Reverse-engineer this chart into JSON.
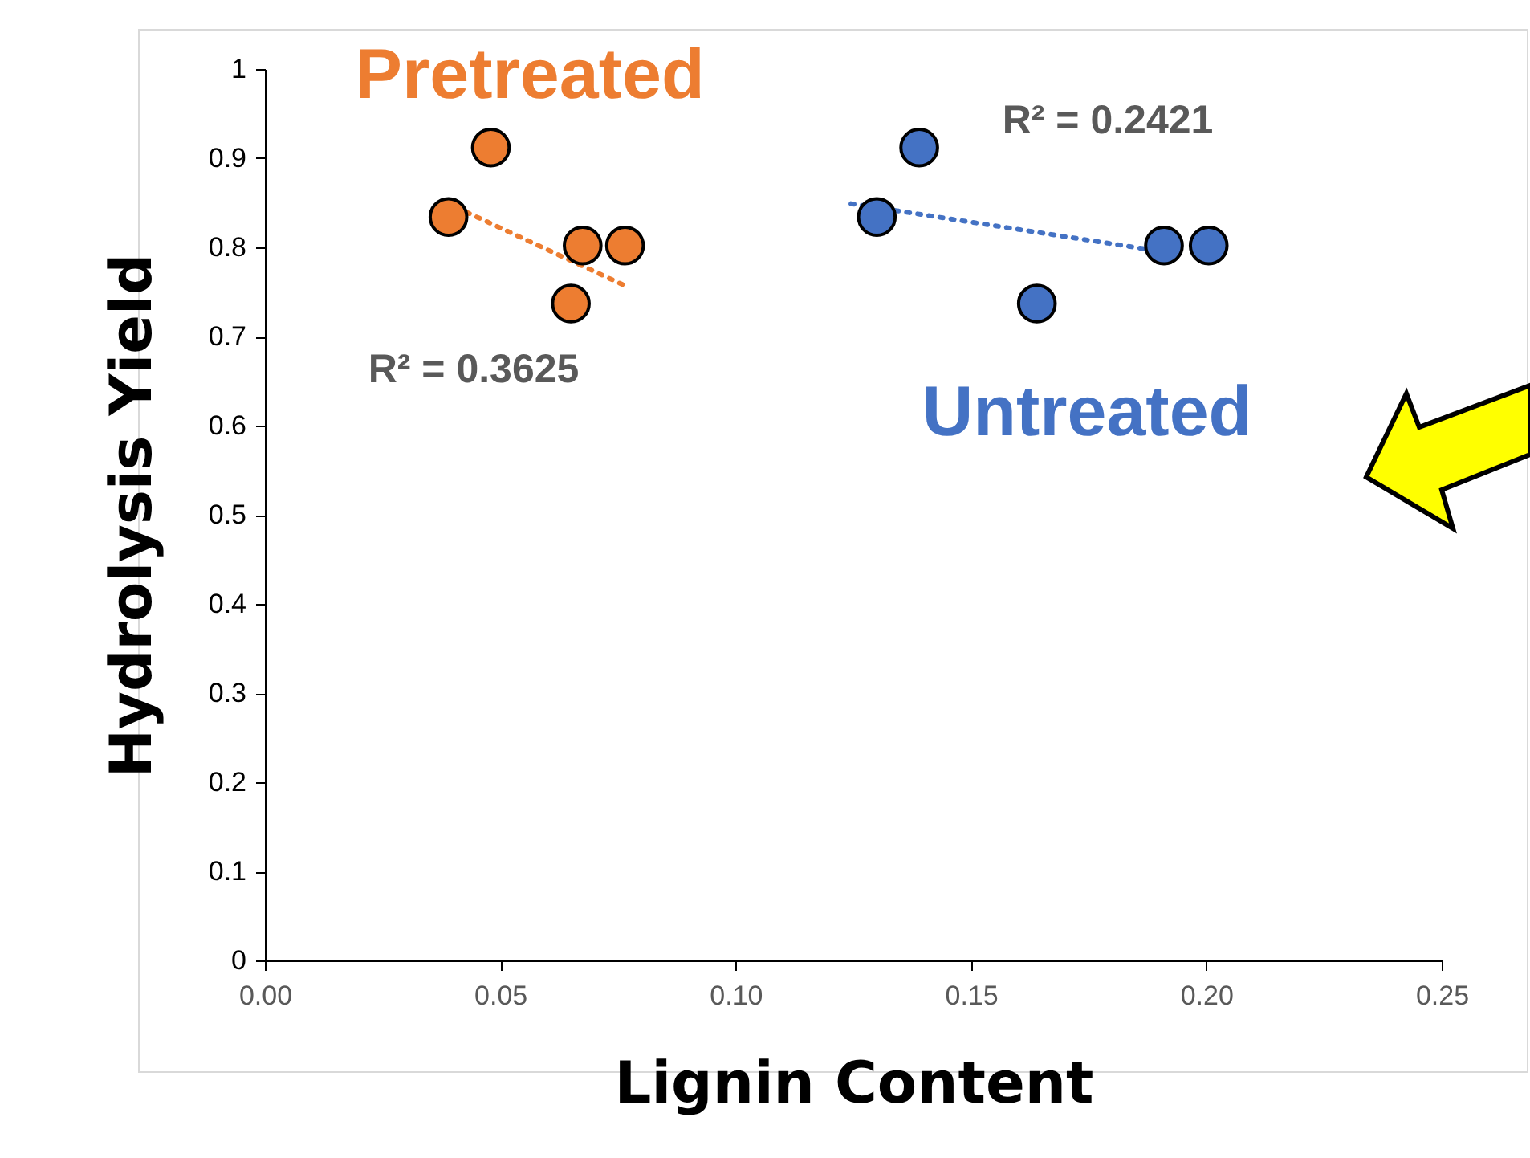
{
  "chart_data": {
    "type": "scatter",
    "xlabel": "Lignin Content",
    "ylabel": "Hydrolysis Yield",
    "marker": "circle",
    "xlim": [
      0,
      0.25
    ],
    "ylim": [
      0,
      1
    ],
    "xticks": [
      {
        "value": 0,
        "label": "0.00"
      },
      {
        "value": 0.05,
        "label": "0.05"
      },
      {
        "value": 0.1,
        "label": "0.10"
      },
      {
        "value": 0.15,
        "label": "0.15"
      },
      {
        "value": 0.2,
        "label": "0.20"
      },
      {
        "value": 0.25,
        "label": "0.25"
      }
    ],
    "yticks": [
      0,
      0.1,
      0.2,
      0.3,
      0.4,
      0.5,
      0.6,
      0.7,
      0.8,
      0.9,
      1
    ],
    "annotations": [
      "R² = 0.3625",
      "R² = 0.2421"
    ],
    "series": [
      {
        "name": "Pretreated",
        "color": "#ed7d31",
        "x": [
          0.039,
          0.048,
          0.0675,
          0.0765,
          0.065
        ],
        "values": [
          0.834,
          0.912,
          0.802,
          0.802,
          0.737
        ]
      },
      {
        "name": "Untreated",
        "color": "#4472c4",
        "x": [
          0.13,
          0.139,
          0.164,
          0.191,
          0.2005
        ],
        "values": [
          0.834,
          0.912,
          0.737,
          0.802,
          0.802
        ]
      },
      {
        "type": "line",
        "line_style": "dotted",
        "marker": "none",
        "color": "#ed7d31",
        "x": [
          0.0385,
          0.0765
        ],
        "values": [
          0.85,
          0.757
        ]
      },
      {
        "type": "line",
        "line_style": "dotted",
        "marker": "none",
        "color": "#4472c4",
        "x": [
          0.1245,
          0.191
        ],
        "values": [
          0.849,
          0.795
        ]
      }
    ]
  }
}
